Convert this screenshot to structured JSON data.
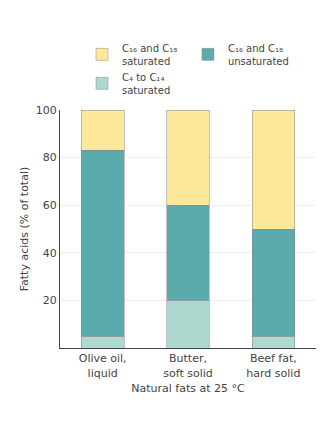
{
  "chart_data": {
    "type": "bar",
    "stacked": true,
    "categories": [
      "Olive oil,\nliquid",
      "Butter,\nsoft solid",
      "Beef fat,\nhard solid"
    ],
    "series": [
      {
        "name": "C₄ to C₁₄\nsaturated",
        "color": "#aed9d0",
        "values": [
          5,
          20,
          5
        ]
      },
      {
        "name": "C₁₆ and C₁₈\nunsaturated",
        "color": "#5aacac",
        "values": [
          78,
          40,
          45
        ]
      },
      {
        "name": "C₁₆ and C₁₈\nsaturated",
        "color": "#fbe89a",
        "values": [
          17,
          40,
          50
        ]
      }
    ],
    "xlabel": "Natural fats at 25 °C",
    "ylabel": "Fatty acids (% of total)",
    "ylim": [
      0,
      100
    ],
    "yticks": [
      20,
      40,
      60,
      80,
      100
    ],
    "grid": true,
    "legend": "top"
  }
}
